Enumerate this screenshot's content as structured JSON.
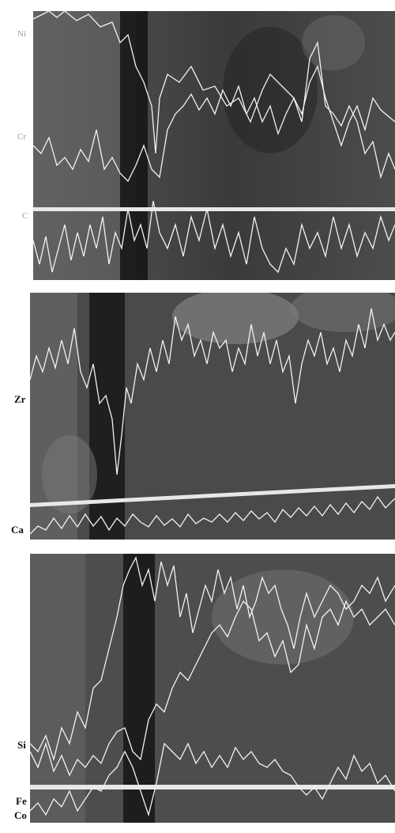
{
  "panels": [
    {
      "labels": [
        {
          "text": "Ni",
          "style": "faint"
        },
        {
          "text": "Cr",
          "style": "faint"
        },
        {
          "text": "C",
          "style": "faint"
        }
      ]
    },
    {
      "labels": [
        {
          "text": "Zr",
          "style": "bold"
        },
        {
          "text": "Ca",
          "style": "bold"
        }
      ]
    },
    {
      "labels": [
        {
          "text": "Si",
          "style": "bold"
        },
        {
          "text": "Fe",
          "style": "bold"
        },
        {
          "text": "Co",
          "style": "bold"
        }
      ]
    }
  ]
}
